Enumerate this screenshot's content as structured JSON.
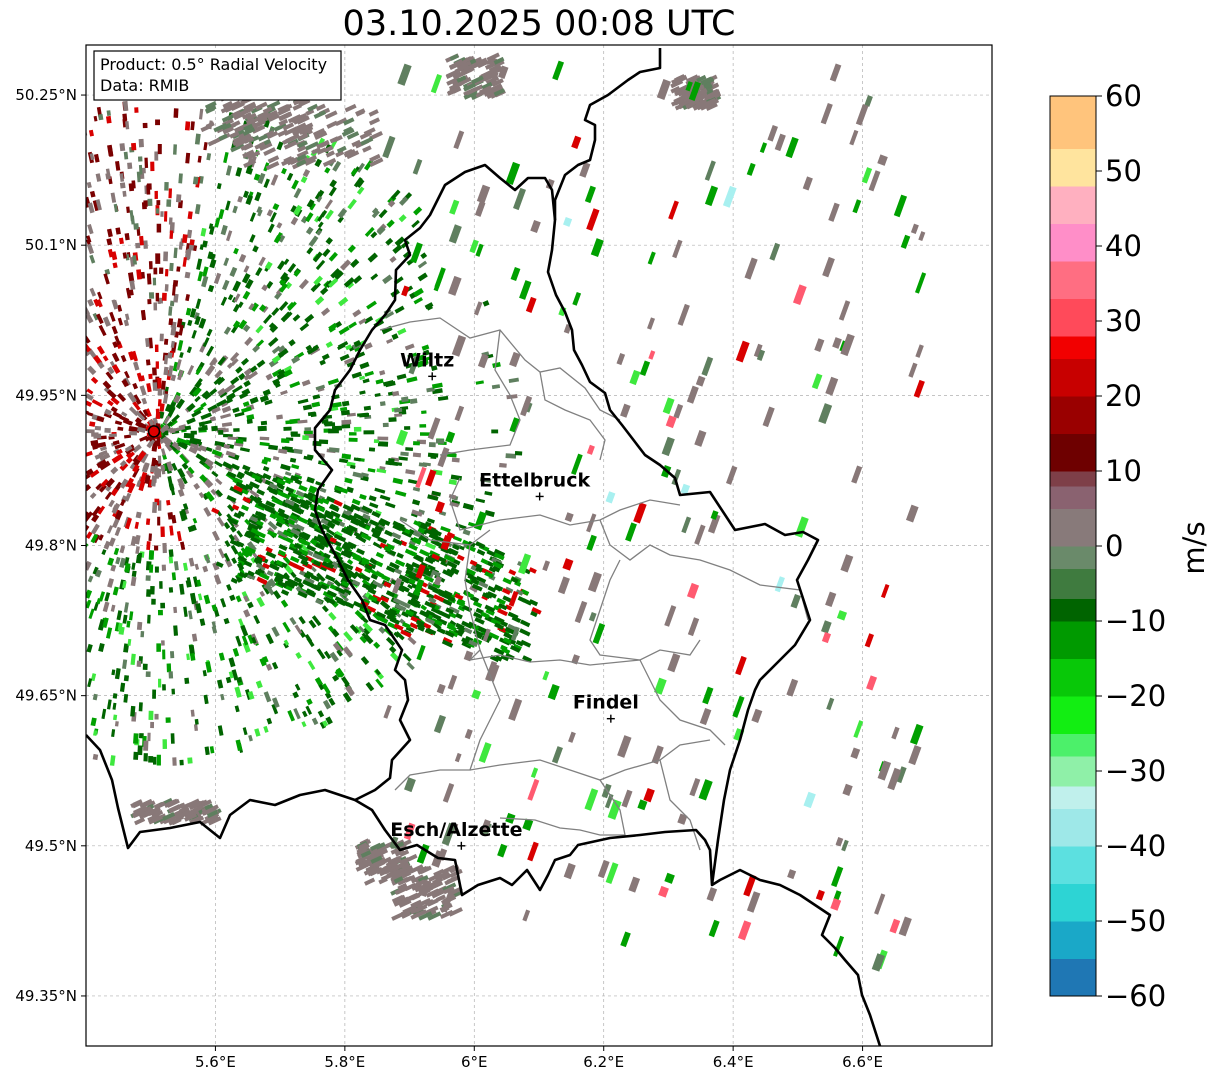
{
  "title": "03.10.2025 00:08 UTC",
  "info_box": {
    "product": "Product: 0.5° Radial Velocity",
    "source": "Data: RMIB"
  },
  "map": {
    "lon_range": [
      5.4,
      6.8
    ],
    "lat_range": [
      49.3,
      50.3
    ],
    "lon_ticks": [
      {
        "value": 5.6,
        "label": "5.6°E"
      },
      {
        "value": 5.8,
        "label": "5.8°E"
      },
      {
        "value": 6.0,
        "label": "6°E"
      },
      {
        "value": 6.2,
        "label": "6.2°E"
      },
      {
        "value": 6.4,
        "label": "6.4°E"
      },
      {
        "value": 6.6,
        "label": "6.6°E"
      }
    ],
    "lat_ticks": [
      {
        "value": 50.25,
        "label": "50.25°N"
      },
      {
        "value": 50.1,
        "label": "50.1°N"
      },
      {
        "value": 49.95,
        "label": "49.95°N"
      },
      {
        "value": 49.8,
        "label": "49.8°N"
      },
      {
        "value": 49.65,
        "label": "49.65°N"
      },
      {
        "value": 49.5,
        "label": "49.5°N"
      },
      {
        "value": 49.35,
        "label": "49.35°N"
      }
    ],
    "grid": true,
    "radar_site": {
      "lon": 5.505,
      "lat": 49.914
    },
    "cities": [
      {
        "name": "Wiltz",
        "lon": 5.935,
        "lat": 49.969
      },
      {
        "name": "Ettelbruck",
        "lon": 6.101,
        "lat": 49.849
      },
      {
        "name": "Findel",
        "lon": 6.211,
        "lat": 49.627
      },
      {
        "name": "Esch/Alzette",
        "lon": 5.98,
        "lat": 49.5
      }
    ]
  },
  "colorbar": {
    "label": "m/s",
    "min": -60,
    "max": 60,
    "ticks": [
      {
        "value": 60,
        "label": "60"
      },
      {
        "value": 50,
        "label": "50"
      },
      {
        "value": 40,
        "label": "40"
      },
      {
        "value": 30,
        "label": "30"
      },
      {
        "value": 20,
        "label": "20"
      },
      {
        "value": 10,
        "label": "10"
      },
      {
        "value": 0,
        "label": "0"
      },
      {
        "value": -10,
        "label": "−10"
      },
      {
        "value": -20,
        "label": "−20"
      },
      {
        "value": -30,
        "label": "−30"
      },
      {
        "value": -40,
        "label": "−40"
      },
      {
        "value": -50,
        "label": "−50"
      },
      {
        "value": -60,
        "label": "−60"
      }
    ],
    "stops": [
      {
        "value": -60,
        "color": "#1f77b4"
      },
      {
        "value": -55,
        "color": "#1aa8c8"
      },
      {
        "value": -50,
        "color": "#2dd4d4"
      },
      {
        "value": -45,
        "color": "#5ce0e0"
      },
      {
        "value": -40,
        "color": "#9ee8e8"
      },
      {
        "value": -35,
        "color": "#c0f0ec"
      },
      {
        "value": -32,
        "color": "#8ff0a8"
      },
      {
        "value": -28,
        "color": "#4cf06a"
      },
      {
        "value": -25,
        "color": "#12ee12"
      },
      {
        "value": -20,
        "color": "#08c808"
      },
      {
        "value": -15,
        "color": "#009a00"
      },
      {
        "value": -10,
        "color": "#006400"
      },
      {
        "value": -7,
        "color": "#3f7b3f"
      },
      {
        "value": -3,
        "color": "#6a8a6a"
      },
      {
        "value": 0,
        "color": "#887a7a"
      },
      {
        "value": 5,
        "color": "#8a6270"
      },
      {
        "value": 8,
        "color": "#7e3f48"
      },
      {
        "value": 10,
        "color": "#6e0000"
      },
      {
        "value": 15,
        "color": "#9a0000"
      },
      {
        "value": 20,
        "color": "#c80000"
      },
      {
        "value": 25,
        "color": "#f20000"
      },
      {
        "value": 28,
        "color": "#ff4a5a"
      },
      {
        "value": 33,
        "color": "#ff6e82"
      },
      {
        "value": 38,
        "color": "#ff8ec8"
      },
      {
        "value": 43,
        "color": "#ffb0c0"
      },
      {
        "value": 48,
        "color": "#ffe49e"
      },
      {
        "value": 53,
        "color": "#ffc47c"
      },
      {
        "value": 60,
        "color": "#ff9a4c"
      }
    ]
  },
  "colors": {
    "green_dark": "#006400",
    "green": "#00a000",
    "green_light": "#3ee83e",
    "gray_green": "#5f7f5f",
    "gray": "#887878",
    "maroon": "#7a0000",
    "red": "#d80000",
    "pink": "#ff5a70",
    "peach": "#ffd28c",
    "cyan": "#a8f0f0"
  }
}
